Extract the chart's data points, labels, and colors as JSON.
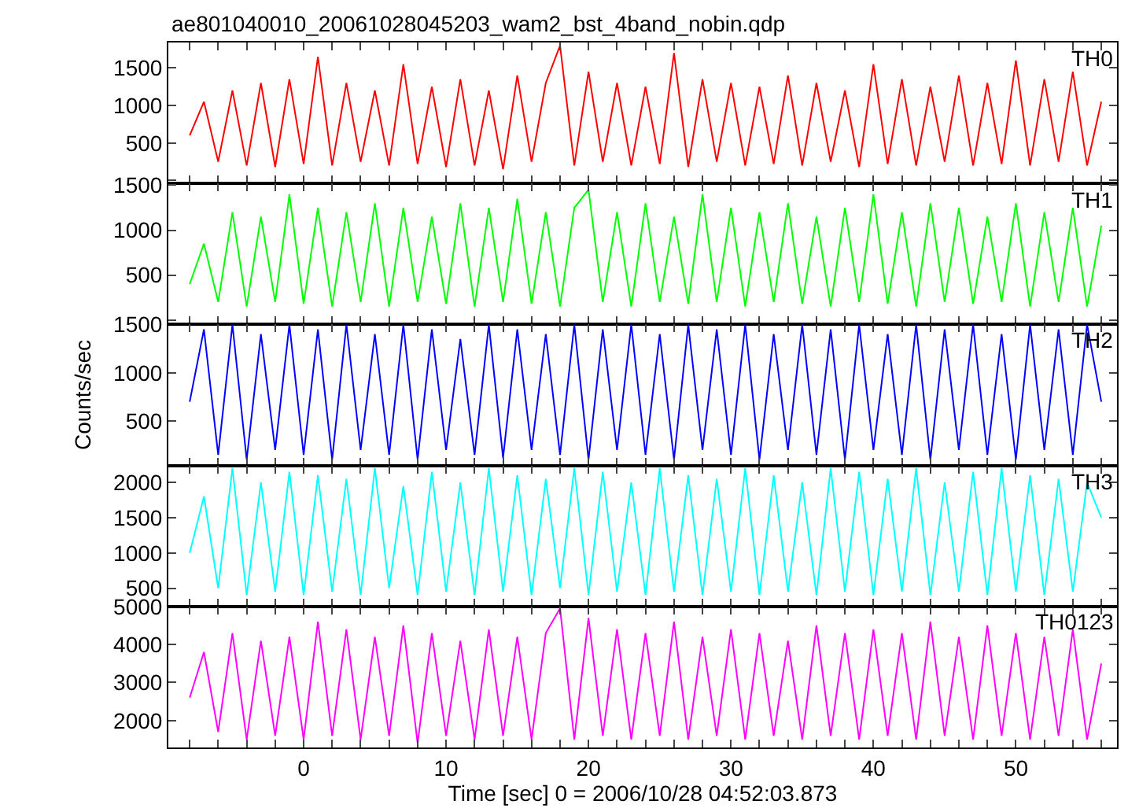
{
  "chart_data": [
    {
      "type": "line",
      "title": "ae801040010_20061028045203_wam2_bst_4band_nobin.qdp",
      "tick_labels": "y",
      "x": [
        -8,
        -7,
        -6,
        -5,
        -4,
        -3,
        -2,
        -1,
        0,
        1,
        2,
        3,
        4,
        5,
        6,
        7,
        8,
        9,
        10,
        11,
        12,
        13,
        14,
        15,
        16,
        17,
        18,
        19,
        20,
        21,
        22,
        23,
        24,
        25,
        26,
        27,
        28,
        29,
        30,
        31,
        32,
        33,
        34,
        35,
        36,
        37,
        38,
        39,
        40,
        41,
        42,
        43,
        44,
        45,
        46,
        47,
        48,
        49,
        50,
        51,
        52,
        53,
        54,
        55,
        56
      ],
      "series": [
        {
          "name": "TH0",
          "color": "#ff0000",
          "values": [
            600,
            1050,
            250,
            1200,
            200,
            1300,
            180,
            1350,
            220,
            1650,
            200,
            1300,
            250,
            1200,
            200,
            1550,
            220,
            1250,
            180,
            1350,
            200,
            1200,
            150,
            1400,
            250,
            1300,
            1800,
            200,
            1450,
            250,
            1300,
            200,
            1250,
            220,
            1700,
            180,
            1350,
            250,
            1300,
            200,
            1250,
            220,
            1400,
            200,
            1300,
            250,
            1200,
            180,
            1550,
            220,
            1350,
            200,
            1250,
            250,
            1400,
            200,
            1300,
            220,
            1600,
            200,
            1350,
            250,
            1450,
            200,
            1050
          ]
        }
      ],
      "xlim": [
        -9.5,
        57.1
      ],
      "xticks": [
        {
          "value": -8,
          "label": null
        },
        {
          "value": -6,
          "label": null
        },
        {
          "value": -4,
          "label": null
        },
        {
          "value": -2,
          "label": null
        },
        0,
        {
          "value": 2,
          "label": null
        },
        {
          "value": 4,
          "label": null
        },
        {
          "value": 6,
          "label": null
        },
        {
          "value": 8,
          "label": null
        },
        10,
        {
          "value": 12,
          "label": null
        },
        {
          "value": 14,
          "label": null
        },
        {
          "value": 16,
          "label": null
        },
        {
          "value": 18,
          "label": null
        },
        20,
        {
          "value": 22,
          "label": null
        },
        {
          "value": 24,
          "label": null
        },
        {
          "value": 26,
          "label": null
        },
        {
          "value": 28,
          "label": null
        },
        30,
        {
          "value": 32,
          "label": null
        },
        {
          "value": 34,
          "label": null
        },
        {
          "value": 36,
          "label": null
        },
        {
          "value": 38,
          "label": null
        },
        40,
        {
          "value": 42,
          "label": null
        },
        {
          "value": 44,
          "label": null
        },
        {
          "value": 46,
          "label": null
        },
        {
          "value": 48,
          "label": null
        },
        50,
        {
          "value": 52,
          "label": null
        },
        {
          "value": 54,
          "label": null
        },
        {
          "value": 56,
          "label": null
        }
      ],
      "ylim": [
        -40,
        1840
      ],
      "yticks": [
        {
          "value": 0,
          "label": null
        },
        500,
        1000,
        1500
      ]
    },
    {
      "type": "line",
      "tick_labels": "y",
      "x": [
        -8,
        -7,
        -6,
        -5,
        -4,
        -3,
        -2,
        -1,
        0,
        1,
        2,
        3,
        4,
        5,
        6,
        7,
        8,
        9,
        10,
        11,
        12,
        13,
        14,
        15,
        16,
        17,
        18,
        19,
        20,
        21,
        22,
        23,
        24,
        25,
        26,
        27,
        28,
        29,
        30,
        31,
        32,
        33,
        34,
        35,
        36,
        37,
        38,
        39,
        40,
        41,
        42,
        43,
        44,
        45,
        46,
        47,
        48,
        49,
        50,
        51,
        52,
        53,
        54,
        55,
        56
      ],
      "series": [
        {
          "name": "TH1",
          "color": "#00ff00",
          "values": [
            400,
            850,
            200,
            1200,
            150,
            1150,
            200,
            1400,
            180,
            1250,
            150,
            1200,
            200,
            1300,
            150,
            1250,
            200,
            1150,
            180,
            1300,
            150,
            1250,
            200,
            1350,
            180,
            1200,
            150,
            1250,
            1450,
            200,
            1200,
            150,
            1300,
            200,
            1150,
            180,
            1400,
            200,
            1250,
            150,
            1200,
            200,
            1300,
            180,
            1150,
            150,
            1250,
            200,
            1400,
            180,
            1200,
            150,
            1300,
            200,
            1250,
            180,
            1150,
            200,
            1300,
            150,
            1200,
            200,
            1250,
            150,
            1050
          ]
        }
      ],
      "xlim": [
        -9.5,
        57.1
      ],
      "xticks": [
        {
          "value": -8,
          "label": null
        },
        {
          "value": -6,
          "label": null
        },
        {
          "value": -4,
          "label": null
        },
        {
          "value": -2,
          "label": null
        },
        0,
        {
          "value": 2,
          "label": null
        },
        {
          "value": 4,
          "label": null
        },
        {
          "value": 6,
          "label": null
        },
        {
          "value": 8,
          "label": null
        },
        10,
        {
          "value": 12,
          "label": null
        },
        {
          "value": 14,
          "label": null
        },
        {
          "value": 16,
          "label": null
        },
        {
          "value": 18,
          "label": null
        },
        20,
        {
          "value": 22,
          "label": null
        },
        {
          "value": 24,
          "label": null
        },
        {
          "value": 26,
          "label": null
        },
        {
          "value": 28,
          "label": null
        },
        30,
        {
          "value": 32,
          "label": null
        },
        {
          "value": 34,
          "label": null
        },
        {
          "value": 36,
          "label": null
        },
        {
          "value": 38,
          "label": null
        },
        40,
        {
          "value": 42,
          "label": null
        },
        {
          "value": 44,
          "label": null
        },
        {
          "value": 46,
          "label": null
        },
        {
          "value": 48,
          "label": null
        },
        50,
        {
          "value": 52,
          "label": null
        },
        {
          "value": 54,
          "label": null
        },
        {
          "value": 56,
          "label": null
        }
      ],
      "ylim": [
        -50,
        1520
      ],
      "yticks": [
        {
          "value": 0,
          "label": null
        },
        500,
        1000,
        1500
      ]
    },
    {
      "type": "line",
      "tick_labels": "y",
      "ylabel": "Counts/sec",
      "x": [
        -8,
        -7,
        -6,
        -5,
        -4,
        -3,
        -2,
        -1,
        0,
        1,
        2,
        3,
        4,
        5,
        6,
        7,
        8,
        9,
        10,
        11,
        12,
        13,
        14,
        15,
        16,
        17,
        18,
        19,
        20,
        21,
        22,
        23,
        24,
        25,
        26,
        27,
        28,
        29,
        30,
        31,
        32,
        33,
        34,
        35,
        36,
        37,
        38,
        39,
        40,
        41,
        42,
        43,
        44,
        45,
        46,
        47,
        48,
        49,
        50,
        51,
        52,
        53,
        54,
        55,
        56
      ],
      "series": [
        {
          "name": "TH2",
          "color": "#0000ff",
          "values": [
            700,
            1450,
            150,
            1500,
            100,
            1400,
            200,
            1500,
            150,
            1450,
            100,
            1500,
            200,
            1400,
            150,
            1500,
            100,
            1450,
            200,
            1350,
            150,
            1500,
            120,
            1450,
            200,
            1400,
            150,
            1500,
            100,
            1450,
            200,
            1500,
            150,
            1400,
            100,
            1500,
            200,
            1450,
            150,
            1500,
            100,
            1400,
            200,
            1500,
            150,
            1450,
            100,
            1500,
            200,
            1400,
            150,
            1500,
            100,
            1450,
            200,
            1500,
            150,
            1400,
            100,
            1500,
            200,
            1450,
            150,
            1500,
            700
          ]
        }
      ],
      "xlim": [
        -9.5,
        57.1
      ],
      "xticks": [
        {
          "value": -8,
          "label": null
        },
        {
          "value": -6,
          "label": null
        },
        {
          "value": -4,
          "label": null
        },
        {
          "value": -2,
          "label": null
        },
        0,
        {
          "value": 2,
          "label": null
        },
        {
          "value": 4,
          "label": null
        },
        {
          "value": 6,
          "label": null
        },
        {
          "value": 8,
          "label": null
        },
        10,
        {
          "value": 12,
          "label": null
        },
        {
          "value": 14,
          "label": null
        },
        {
          "value": 16,
          "label": null
        },
        {
          "value": 18,
          "label": null
        },
        20,
        {
          "value": 22,
          "label": null
        },
        {
          "value": 24,
          "label": null
        },
        {
          "value": 26,
          "label": null
        },
        {
          "value": 28,
          "label": null
        },
        30,
        {
          "value": 32,
          "label": null
        },
        {
          "value": 34,
          "label": null
        },
        {
          "value": 36,
          "label": null
        },
        {
          "value": 38,
          "label": null
        },
        40,
        {
          "value": 42,
          "label": null
        },
        {
          "value": 44,
          "label": null
        },
        {
          "value": 46,
          "label": null
        },
        {
          "value": 48,
          "label": null
        },
        50,
        {
          "value": 52,
          "label": null
        },
        {
          "value": 54,
          "label": null
        },
        {
          "value": 56,
          "label": null
        }
      ],
      "ylim": [
        40,
        1500
      ],
      "yticks": [
        500,
        1000,
        1500
      ]
    },
    {
      "type": "line",
      "tick_labels": "y",
      "x": [
        -8,
        -7,
        -6,
        -5,
        -4,
        -3,
        -2,
        -1,
        0,
        1,
        2,
        3,
        4,
        5,
        6,
        7,
        8,
        9,
        10,
        11,
        12,
        13,
        14,
        15,
        16,
        17,
        18,
        19,
        20,
        21,
        22,
        23,
        24,
        25,
        26,
        27,
        28,
        29,
        30,
        31,
        32,
        33,
        34,
        35,
        36,
        37,
        38,
        39,
        40,
        41,
        42,
        43,
        44,
        45,
        46,
        47,
        48,
        49,
        50,
        51,
        52,
        53,
        54,
        55,
        56
      ],
      "series": [
        {
          "name": "TH3",
          "color": "#00ffff",
          "values": [
            1000,
            1800,
            500,
            2200,
            400,
            2000,
            450,
            2150,
            400,
            2100,
            450,
            2050,
            400,
            2200,
            500,
            1950,
            400,
            2150,
            450,
            2000,
            400,
            2200,
            450,
            2100,
            400,
            2050,
            500,
            2200,
            400,
            2150,
            450,
            2000,
            400,
            2200,
            450,
            2100,
            400,
            2050,
            450,
            2200,
            400,
            2100,
            450,
            2000,
            400,
            2200,
            450,
            2150,
            400,
            2050,
            450,
            2200,
            400,
            2000,
            450,
            2150,
            400,
            2200,
            450,
            2100,
            400,
            2050,
            450,
            2000,
            1500
          ]
        }
      ],
      "xlim": [
        -9.5,
        57.1
      ],
      "xticks": [
        {
          "value": -8,
          "label": null
        },
        {
          "value": -6,
          "label": null
        },
        {
          "value": -4,
          "label": null
        },
        {
          "value": -2,
          "label": null
        },
        0,
        {
          "value": 2,
          "label": null
        },
        {
          "value": 4,
          "label": null
        },
        {
          "value": 6,
          "label": null
        },
        {
          "value": 8,
          "label": null
        },
        10,
        {
          "value": 12,
          "label": null
        },
        {
          "value": 14,
          "label": null
        },
        {
          "value": 16,
          "label": null
        },
        {
          "value": 18,
          "label": null
        },
        20,
        {
          "value": 22,
          "label": null
        },
        {
          "value": 24,
          "label": null
        },
        {
          "value": 26,
          "label": null
        },
        {
          "value": 28,
          "label": null
        },
        30,
        {
          "value": 32,
          "label": null
        },
        {
          "value": 34,
          "label": null
        },
        {
          "value": 36,
          "label": null
        },
        {
          "value": 38,
          "label": null
        },
        40,
        {
          "value": 42,
          "label": null
        },
        {
          "value": 44,
          "label": null
        },
        {
          "value": 46,
          "label": null
        },
        {
          "value": 48,
          "label": null
        },
        50,
        {
          "value": 52,
          "label": null
        },
        {
          "value": 54,
          "label": null
        },
        {
          "value": 56,
          "label": null
        }
      ],
      "ylim": [
        240,
        2240
      ],
      "yticks": [
        500,
        1000,
        1500,
        2000
      ]
    },
    {
      "type": "line",
      "xlabel": "Time [sec] 0 = 2006/10/28 04:52:03.873",
      "x": [
        -8,
        -7,
        -6,
        -5,
        -4,
        -3,
        -2,
        -1,
        0,
        1,
        2,
        3,
        4,
        5,
        6,
        7,
        8,
        9,
        10,
        11,
        12,
        13,
        14,
        15,
        16,
        17,
        18,
        19,
        20,
        21,
        22,
        23,
        24,
        25,
        26,
        27,
        28,
        29,
        30,
        31,
        32,
        33,
        34,
        35,
        36,
        37,
        38,
        39,
        40,
        41,
        42,
        43,
        44,
        45,
        46,
        47,
        48,
        49,
        50,
        51,
        52,
        53,
        54,
        55,
        56
      ],
      "series": [
        {
          "name": "TH0123",
          "color": "#ff00ff",
          "values": [
            2600,
            3800,
            1700,
            4300,
            1500,
            4100,
            1600,
            4200,
            1500,
            4600,
            1600,
            4400,
            1500,
            4200,
            1600,
            4500,
            1400,
            4300,
            1600,
            4100,
            1500,
            4400,
            1600,
            4200,
            1500,
            4300,
            4950,
            1500,
            4700,
            1600,
            4400,
            1500,
            4300,
            1600,
            4600,
            1500,
            4200,
            1600,
            4400,
            1500,
            4300,
            1600,
            4100,
            1500,
            4500,
            1600,
            4300,
            1500,
            4400,
            1600,
            4300,
            1500,
            4600,
            1600,
            4200,
            1500,
            4500,
            1600,
            4300,
            1500,
            4200,
            1600,
            4400,
            1500,
            3500
          ]
        }
      ],
      "xlim": [
        -9.5,
        57.1
      ],
      "xticks": [
        {
          "value": -8,
          "label": null
        },
        {
          "value": -6,
          "label": null
        },
        {
          "value": -4,
          "label": null
        },
        {
          "value": -2,
          "label": null
        },
        0,
        {
          "value": 2,
          "label": null
        },
        {
          "value": 4,
          "label": null
        },
        {
          "value": 6,
          "label": null
        },
        {
          "value": 8,
          "label": null
        },
        10,
        {
          "value": 12,
          "label": null
        },
        {
          "value": 14,
          "label": null
        },
        {
          "value": 16,
          "label": null
        },
        {
          "value": 18,
          "label": null
        },
        20,
        {
          "value": 22,
          "label": null
        },
        {
          "value": 24,
          "label": null
        },
        {
          "value": 26,
          "label": null
        },
        {
          "value": 28,
          "label": null
        },
        30,
        {
          "value": 32,
          "label": null
        },
        {
          "value": 34,
          "label": null
        },
        {
          "value": 36,
          "label": null
        },
        {
          "value": 38,
          "label": null
        },
        40,
        {
          "value": 42,
          "label": null
        },
        {
          "value": 44,
          "label": null
        },
        {
          "value": 46,
          "label": null
        },
        {
          "value": 48,
          "label": null
        },
        50,
        {
          "value": 52,
          "label": null
        },
        {
          "value": 54,
          "label": null
        },
        {
          "value": 56,
          "label": null
        }
      ],
      "ylim": [
        1290,
        5000
      ],
      "yticks": [
        2000,
        3000,
        4000,
        5000
      ]
    }
  ]
}
